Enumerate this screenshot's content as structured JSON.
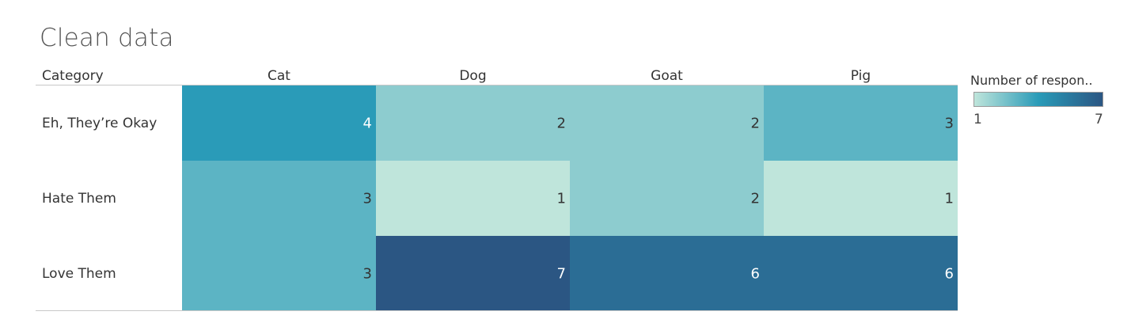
{
  "title": "Clean data",
  "chart_data": {
    "type": "heatmap",
    "title": "Clean data",
    "row_header": "Category",
    "columns": [
      "Cat",
      "Dog",
      "Goat",
      "Pig"
    ],
    "rows": [
      "Eh, They’re Okay",
      "Hate Them",
      "Love Them"
    ],
    "values": [
      [
        4,
        2,
        2,
        3
      ],
      [
        3,
        1,
        2,
        1
      ],
      [
        3,
        7,
        6,
        6
      ]
    ],
    "color_legend": {
      "title": "Number of respon..",
      "min": 1,
      "max": 7,
      "colors": [
        "#bfe5db",
        "#2a9bb8",
        "#2b5683"
      ]
    }
  }
}
